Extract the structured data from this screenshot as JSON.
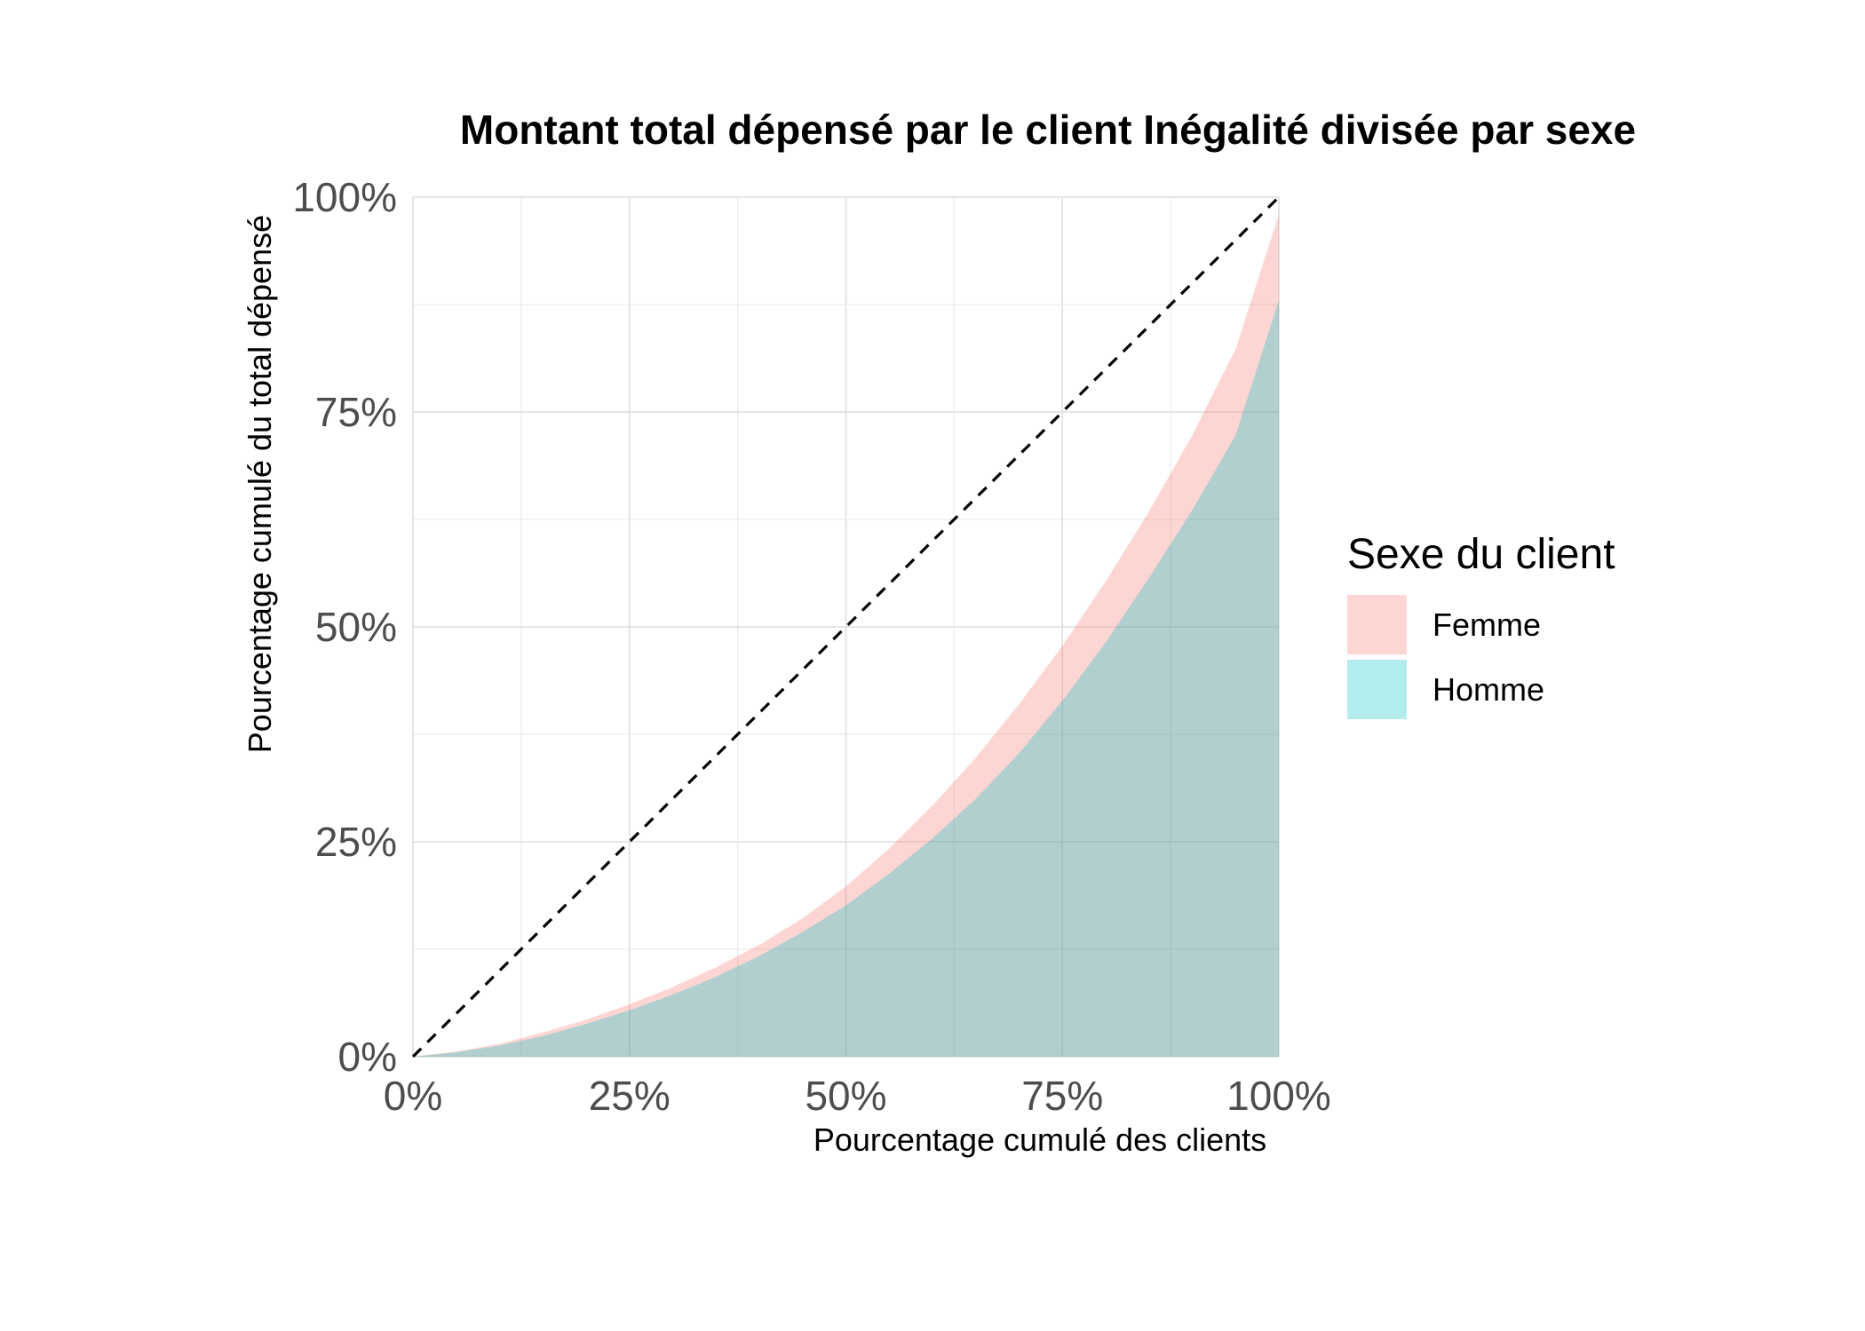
{
  "chart_data": {
    "type": "area",
    "title": "Montant total dépensé par le client Inégalité divisée par sexe",
    "xlabel": "Pourcentage cumulé des clients",
    "ylabel": "Pourcentage cumulé du total dépensé",
    "xlim": [
      0,
      100
    ],
    "ylim": [
      0,
      100
    ],
    "x_ticks": [
      "0%",
      "25%",
      "50%",
      "75%",
      "100%"
    ],
    "y_ticks": [
      "0%",
      "25%",
      "50%",
      "75%",
      "100%"
    ],
    "grid": true,
    "legend": {
      "title": "Sexe du client",
      "placement": "right",
      "entries": [
        {
          "label": "Femme",
          "color": "#F8766D"
        },
        {
          "label": "Homme",
          "color": "#00BFC4"
        }
      ]
    },
    "reference_line": {
      "style": "dashed",
      "color": "#000000",
      "x": [
        0,
        100
      ],
      "y": [
        0,
        100
      ]
    },
    "x": [
      0,
      5,
      10,
      15,
      20,
      25,
      30,
      35,
      40,
      45,
      50,
      55,
      60,
      65,
      70,
      75,
      80,
      85,
      90,
      95,
      100
    ],
    "series": [
      {
        "name": "Femme",
        "color": "#F8766D",
        "opacity": 0.3,
        "values": [
          0,
          0.6,
          1.5,
          2.8,
          4.3,
          6.1,
          8.1,
          10.4,
          13.0,
          16.1,
          19.8,
          24.2,
          29.2,
          34.8,
          41.0,
          47.8,
          55.3,
          63.4,
          72.3,
          82.3,
          98.0
        ]
      },
      {
        "name": "Homme",
        "color": "#00BFC4",
        "opacity": 0.3,
        "values": [
          0,
          0.5,
          1.3,
          2.4,
          3.8,
          5.4,
          7.2,
          9.3,
          11.7,
          14.5,
          17.6,
          21.3,
          25.4,
          30.0,
          35.3,
          41.4,
          48.2,
          55.7,
          63.6,
          72.3,
          88.0
        ]
      }
    ]
  }
}
